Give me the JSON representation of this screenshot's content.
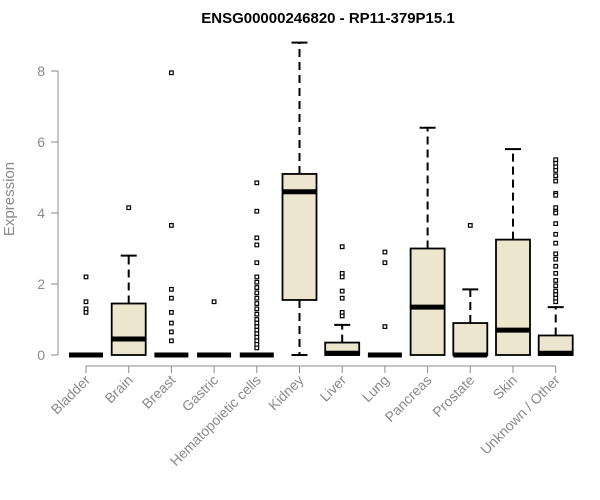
{
  "chart_data": {
    "type": "box",
    "title": "ENSG00000246820 - RP11-379P15.1",
    "xlabel": "",
    "ylabel": "Expression",
    "ylim": [
      0,
      8.8
    ],
    "yticks": [
      0,
      2,
      4,
      6,
      8
    ],
    "box_fill": "#ede6ce",
    "categories": [
      "Bladder",
      "Brain",
      "Breast",
      "Gastric",
      "Hematopoietic cells",
      "Kidney",
      "Liver",
      "Lung",
      "Pancreas",
      "Prostate",
      "Skin",
      "Unknown / Other"
    ],
    "boxes": [
      {
        "category": "Bladder",
        "min": 0,
        "q1": 0,
        "median": 0,
        "q3": 0,
        "max": 0,
        "outliers": [
          2.2,
          1.5,
          1.3,
          1.2
        ]
      },
      {
        "category": "Brain",
        "min": 0,
        "q1": 0,
        "median": 0.45,
        "q3": 1.45,
        "max": 2.8,
        "outliers": [
          4.15
        ]
      },
      {
        "category": "Breast",
        "min": 0,
        "q1": 0,
        "median": 0,
        "q3": 0,
        "max": 0,
        "outliers": [
          7.95,
          3.65,
          1.85,
          1.6,
          1.2,
          0.9,
          0.65,
          0.4
        ]
      },
      {
        "category": "Gastric",
        "min": 0,
        "q1": 0,
        "median": 0,
        "q3": 0,
        "max": 0,
        "outliers": [
          1.5
        ]
      },
      {
        "category": "Hematopoietic cells",
        "min": 0,
        "q1": 0,
        "median": 0,
        "q3": 0,
        "max": 0,
        "outliers": [
          4.85,
          4.05,
          3.3,
          3.1,
          2.6,
          2.2,
          2.05,
          1.9,
          1.75,
          1.6,
          1.45,
          1.3,
          1.15,
          1.0,
          0.9,
          0.8,
          0.7,
          0.6,
          0.5,
          0.4,
          0.3,
          0.2
        ]
      },
      {
        "category": "Kidney",
        "min": 0,
        "q1": 1.55,
        "median": 4.6,
        "q3": 5.1,
        "max": 8.8,
        "outliers": []
      },
      {
        "category": "Liver",
        "min": 0,
        "q1": 0,
        "median": 0.05,
        "q3": 0.35,
        "max": 0.85,
        "outliers": [
          3.05,
          2.3,
          2.2,
          1.8,
          1.6,
          1.2,
          1.1
        ]
      },
      {
        "category": "Lung",
        "min": 0,
        "q1": 0,
        "median": 0,
        "q3": 0,
        "max": 0,
        "outliers": [
          2.9,
          2.6,
          0.8
        ]
      },
      {
        "category": "Pancreas",
        "min": 0,
        "q1": 0,
        "median": 1.35,
        "q3": 3.0,
        "max": 6.4,
        "outliers": []
      },
      {
        "category": "Prostate",
        "min": 0,
        "q1": 0,
        "median": 0,
        "q3": 0.9,
        "max": 1.85,
        "outliers": [
          3.65
        ]
      },
      {
        "category": "Skin",
        "min": 0,
        "q1": 0,
        "median": 0.7,
        "q3": 3.25,
        "max": 5.8,
        "outliers": []
      },
      {
        "category": "Unknown / Other",
        "min": 0,
        "q1": 0,
        "median": 0.05,
        "q3": 0.55,
        "max": 1.35,
        "outliers": [
          5.5,
          5.4,
          5.3,
          5.2,
          5.05,
          4.9,
          4.55,
          4.5,
          4.15,
          4.05,
          4.0,
          3.7,
          3.4,
          3.15,
          2.85,
          2.7,
          2.5,
          2.3,
          2.1,
          1.95,
          1.8,
          1.7,
          1.6,
          1.5
        ]
      }
    ]
  }
}
